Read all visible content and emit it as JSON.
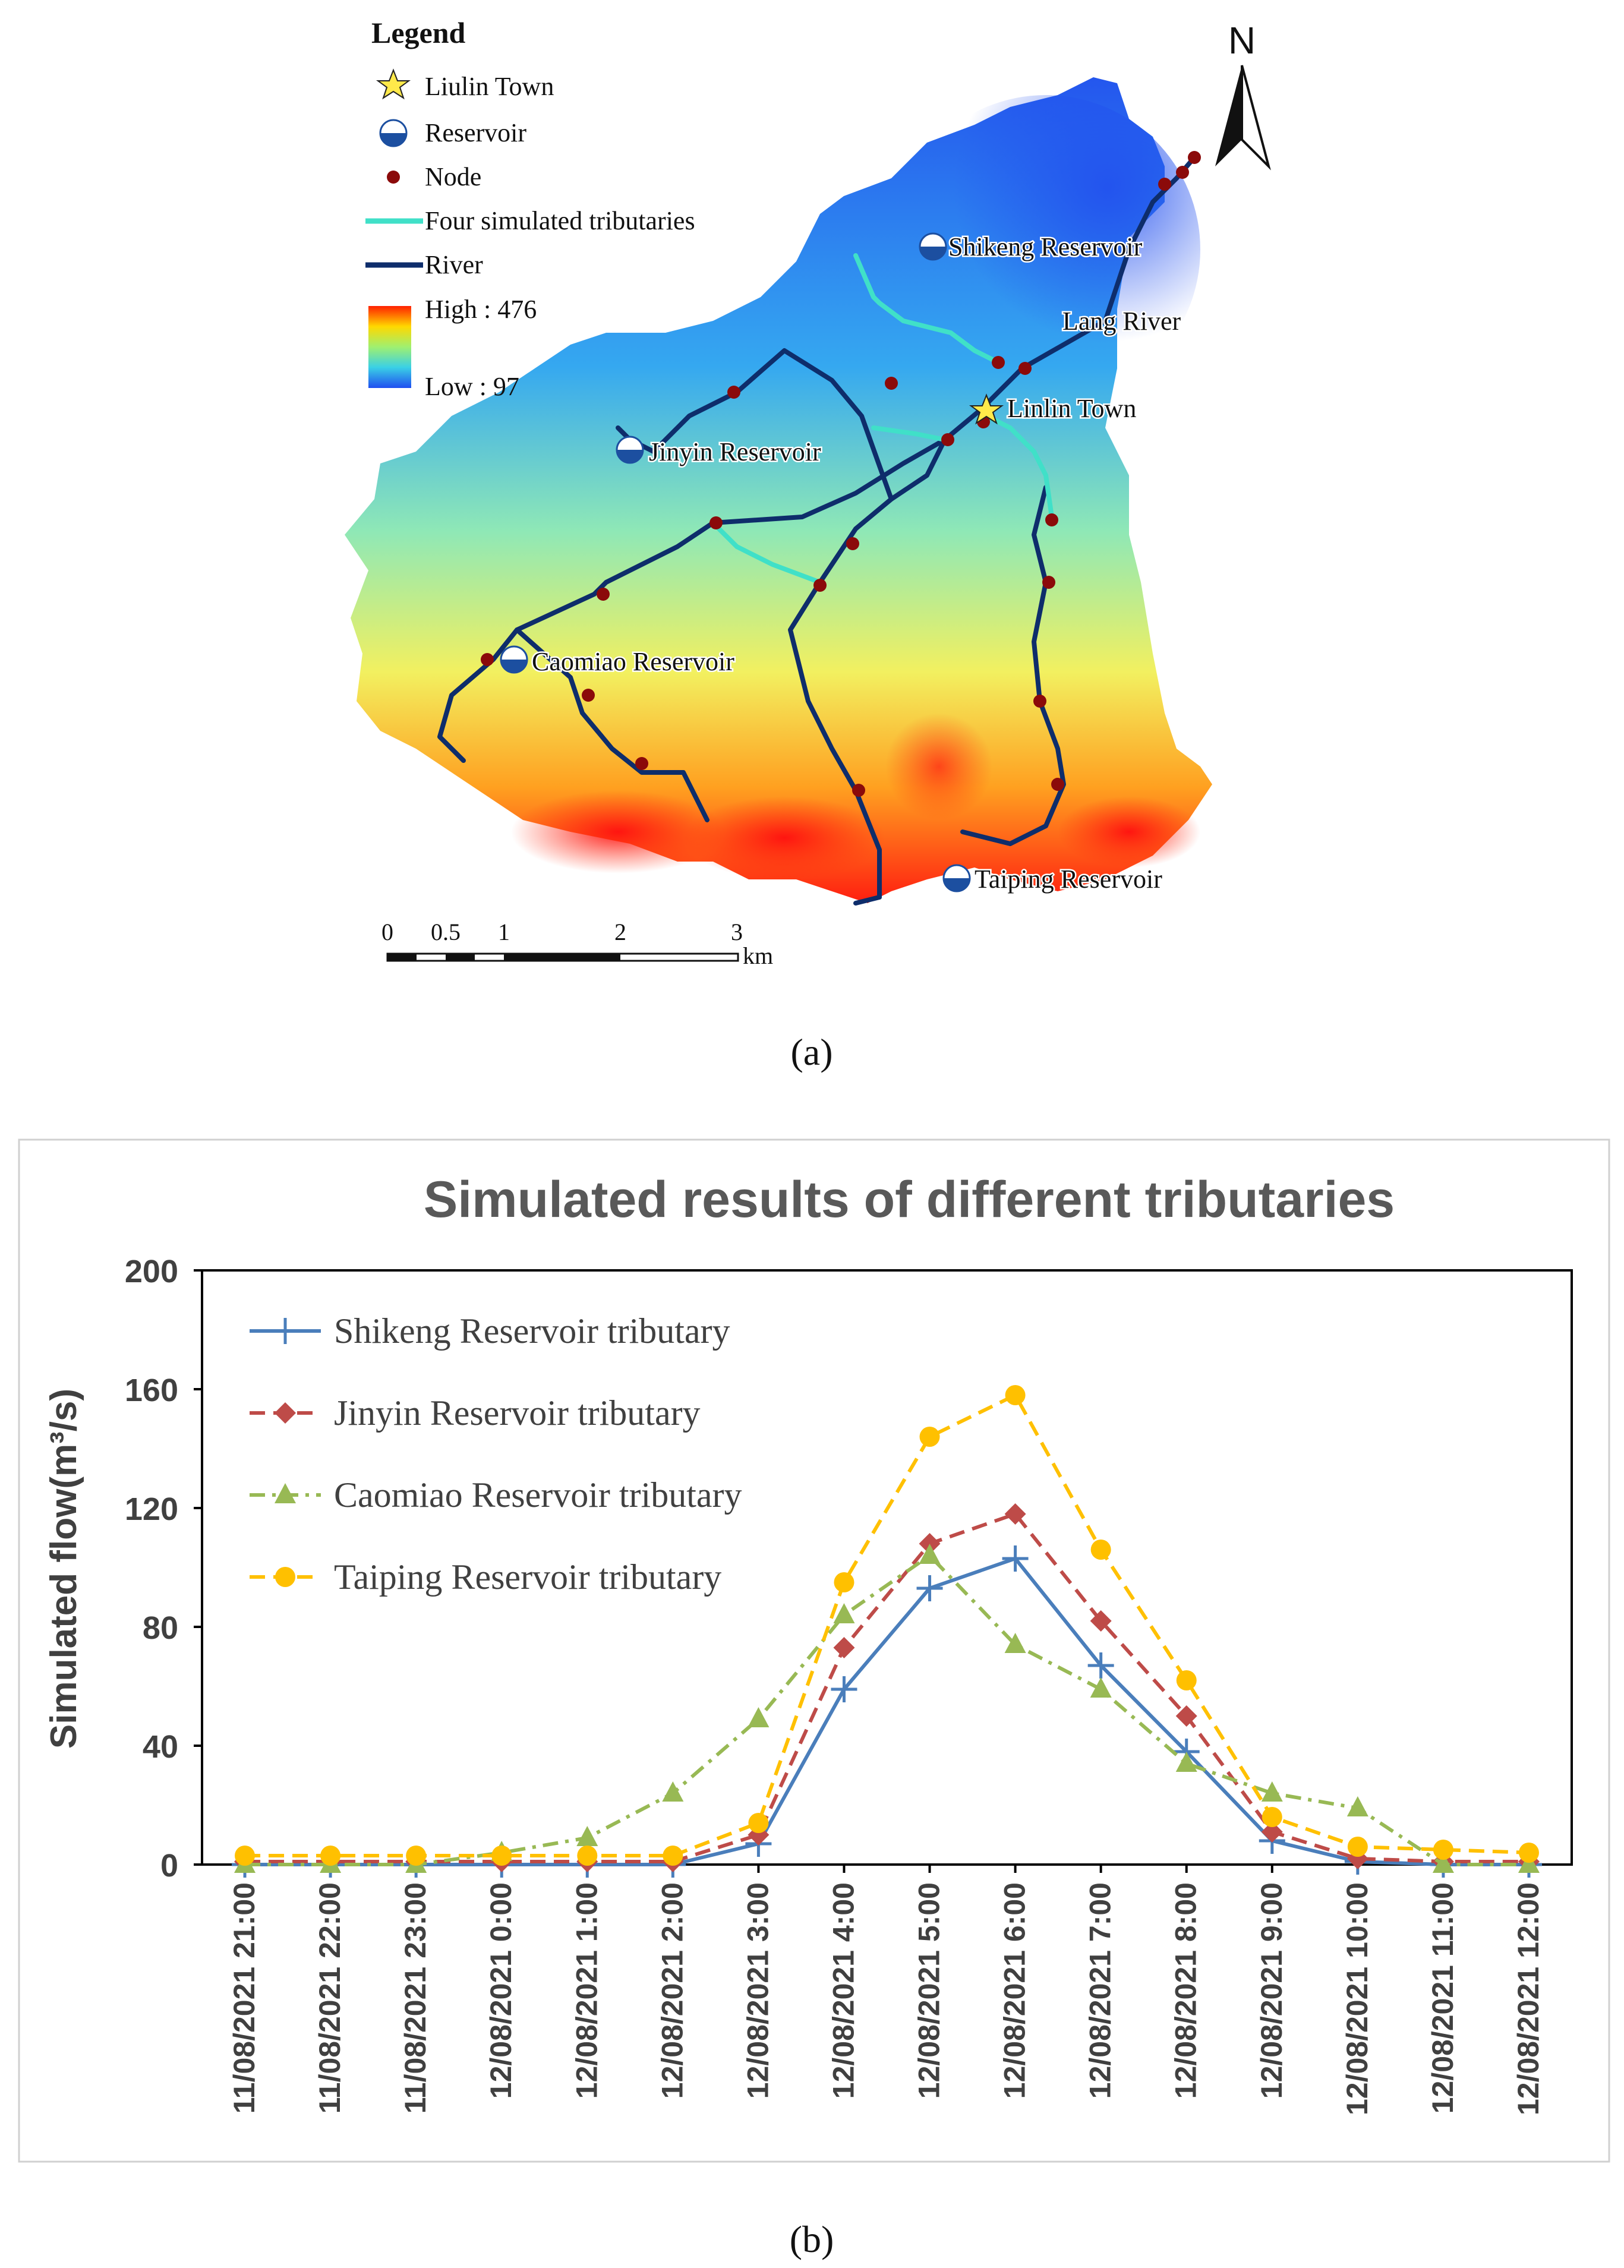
{
  "map": {
    "legend": {
      "title": "Legend",
      "items": [
        "Liulin Town",
        "Reservoir",
        "Node",
        "Four simulated tributaries",
        "River"
      ],
      "elevation_high": "High : 476",
      "elevation_low": "Low : 97"
    },
    "north_label": "N",
    "labels": {
      "shikeng": "Shikeng Reservoir",
      "lang_river": "Lang River",
      "linlin_town": "Linlin Town",
      "jinyin": "Jinyin Reservoir",
      "caomiao": "Caomiao Reservoir",
      "taiping": "Taiping Reservoir"
    },
    "scalebar": {
      "ticks": [
        "0",
        "0.5",
        "1",
        "2",
        "3"
      ],
      "unit": "km"
    },
    "caption": "(a)"
  },
  "chart_data": {
    "type": "line",
    "title": "Simulated results of different tributaries",
    "xlabel": "",
    "ylabel": "Simulated flow(m³/s)",
    "ylim": [
      0,
      200
    ],
    "yticks": [
      0,
      40,
      80,
      120,
      160,
      200
    ],
    "categories": [
      "11/08/2021 21:00",
      "11/08/2021 22:00",
      "11/08/2021 23:00",
      "12/08/2021 0:00",
      "12/08/2021 1:00",
      "12/08/2021 2:00",
      "12/08/2021 3:00",
      "12/08/2021 4:00",
      "12/08/2021 5:00",
      "12/08/2021 6:00",
      "12/08/2021 7:00",
      "12/08/2021 8:00",
      "12/08/2021 9:00",
      "12/08/2021 10:00",
      "12/08/2021 11:00",
      "12/08/2021 12:00"
    ],
    "series": [
      {
        "name": "Shikeng Reservoir tributary",
        "color": "#4A7EBB",
        "marker": "plus",
        "dash": "solid",
        "values": [
          0,
          0,
          0,
          0,
          0,
          0,
          7,
          59,
          93,
          103,
          67,
          38,
          8,
          1,
          0,
          0
        ]
      },
      {
        "name": "Jinyin Reservoir tributary",
        "color": "#BE4B48",
        "marker": "diamond",
        "dash": "dash",
        "values": [
          1,
          1,
          1,
          1,
          1,
          1,
          10,
          73,
          108,
          118,
          82,
          50,
          11,
          2,
          1,
          1
        ]
      },
      {
        "name": "Caomiao Reservoir tributary",
        "color": "#98B954",
        "marker": "triangle",
        "dash": "dashdot",
        "values": [
          0,
          0,
          0,
          4,
          9,
          24,
          49,
          84,
          104,
          74,
          59,
          34,
          24,
          19,
          0,
          0
        ]
      },
      {
        "name": "Taiping Reservoir tributary",
        "color": "#FFC000",
        "marker": "circle",
        "dash": "dash",
        "values": [
          3,
          3,
          3,
          3,
          3,
          3,
          14,
          95,
          144,
          158,
          106,
          62,
          16,
          6,
          5,
          4
        ]
      }
    ],
    "legend_position": "top-left",
    "caption": "(b)"
  }
}
